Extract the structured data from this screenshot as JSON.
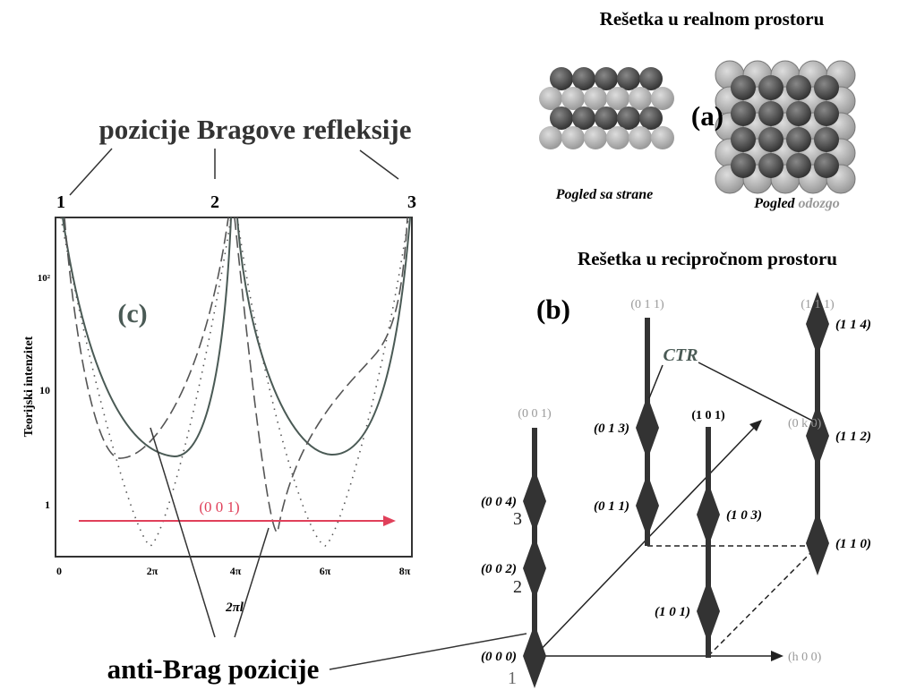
{
  "panel_c": {
    "header": "pozicije Bragove refleksije",
    "peak_numbers": [
      "1",
      "2",
      "3"
    ],
    "label": "(c)",
    "y_axis_label": "Teorijski intenzitet",
    "y_tick_labels": [
      "10²",
      "10",
      "1"
    ],
    "x_axis_label": "2πl",
    "x_tick_labels": [
      "0",
      "2π",
      "4π",
      "6π",
      "8π"
    ],
    "arrow_label": "(0 0 1)",
    "footer": "anti-Brag pozicije"
  },
  "panel_a": {
    "title": "Rešetka u realnom prostoru",
    "label": "(a)",
    "side_caption": "Pogled sa strane",
    "top_caption": {
      "first": "Pogled",
      "second": "odozgo"
    }
  },
  "panel_b": {
    "title": "Rešetka u recipročnom prostoru",
    "label": "(b)",
    "rod_labels": [
      "(0 0 1)",
      "(0 1 1)",
      "(1 0 1)",
      "(1 1 1)"
    ],
    "node_labels": [
      "(0 0 4)",
      "(0 0 2)",
      "(0 0 0)",
      "(0 1 3)",
      "(0 1 1)",
      "(1 0 3)",
      "(1 0 1)",
      "(1 1 4)",
      "(1 1 2)",
      "(1 1 0)"
    ],
    "axis_labels": [
      "(0 k 0)",
      "(h 0 0)"
    ],
    "ctr_label": "CTR",
    "order_numbers": [
      "3",
      "2",
      "1"
    ]
  }
}
